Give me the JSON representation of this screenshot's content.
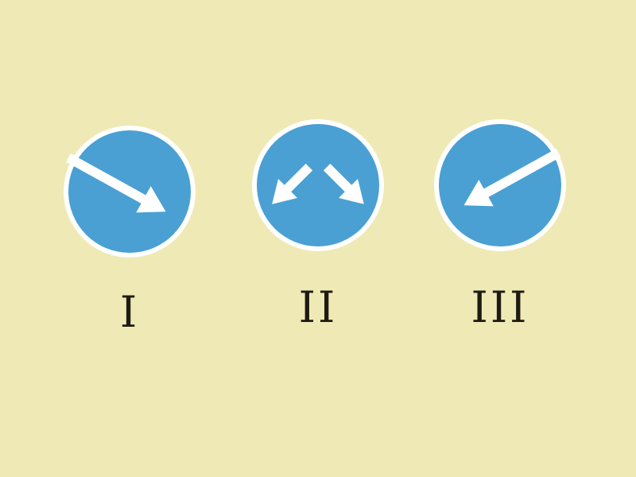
{
  "colors": {
    "background": "#efe9b5",
    "sign_fill": "#4aa0d3",
    "sign_border": "#ffffff",
    "arrow": "#ffffff",
    "label_text": "#1e1a12"
  },
  "signs": [
    {
      "label": "I",
      "icon": "arrow-down-right-icon"
    },
    {
      "label": "II",
      "icon": "arrows-split-down-left-right-icon"
    },
    {
      "label": "III",
      "icon": "arrow-down-left-icon"
    }
  ]
}
